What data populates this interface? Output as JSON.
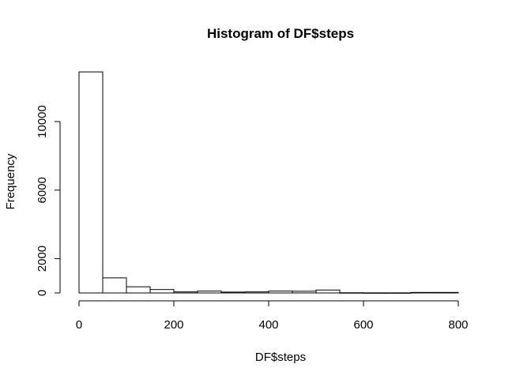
{
  "chart_data": {
    "type": "bar",
    "title": "Histogram of DF$steps",
    "xlabel": "DF$steps",
    "ylabel": "Frequency",
    "xlim": [
      0,
      850
    ],
    "ylim": [
      0,
      13000
    ],
    "x_ticks": [
      0,
      200,
      400,
      600,
      800
    ],
    "y_ticks": [
      0,
      2000,
      6000,
      10000
    ],
    "bin_width": 50,
    "bins": [
      {
        "start": 0,
        "end": 50,
        "count": 12900
      },
      {
        "start": 50,
        "end": 100,
        "count": 880
      },
      {
        "start": 100,
        "end": 150,
        "count": 360
      },
      {
        "start": 150,
        "end": 200,
        "count": 200
      },
      {
        "start": 200,
        "end": 250,
        "count": 60
      },
      {
        "start": 250,
        "end": 300,
        "count": 110
      },
      {
        "start": 300,
        "end": 350,
        "count": 50
      },
      {
        "start": 350,
        "end": 400,
        "count": 60
      },
      {
        "start": 400,
        "end": 450,
        "count": 110
      },
      {
        "start": 450,
        "end": 500,
        "count": 100
      },
      {
        "start": 500,
        "end": 550,
        "count": 170
      },
      {
        "start": 550,
        "end": 600,
        "count": 10
      },
      {
        "start": 600,
        "end": 650,
        "count": 5
      },
      {
        "start": 650,
        "end": 700,
        "count": 5
      },
      {
        "start": 700,
        "end": 750,
        "count": 30
      },
      {
        "start": 750,
        "end": 800,
        "count": 30
      }
    ]
  }
}
